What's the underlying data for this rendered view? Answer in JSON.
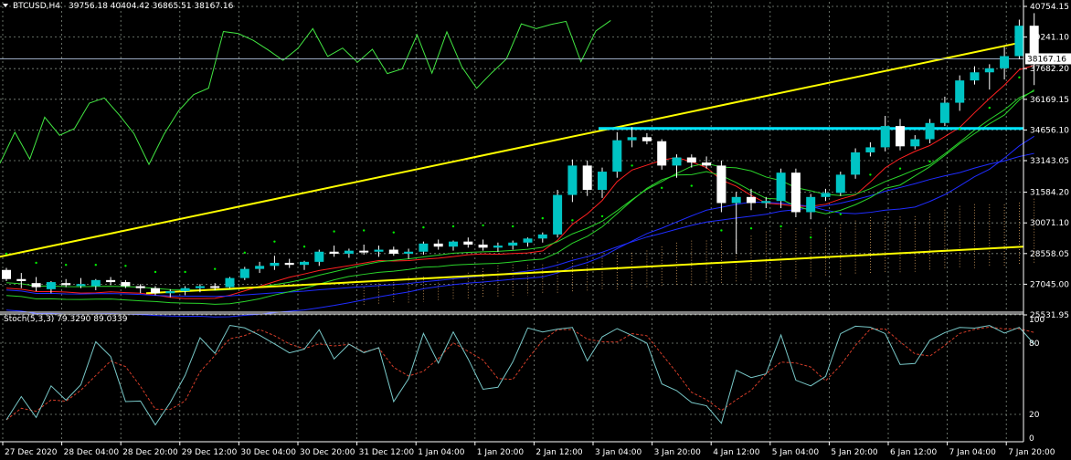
{
  "header": {
    "symbol": "BTCUSD,H4",
    "ohlc": "39756.18 40404.42 36865.51 38167.16"
  },
  "stoch": {
    "label": "Stoch(5,3,3) 79.3290 89.0339",
    "levels": [
      "100",
      "80",
      "20",
      "0"
    ]
  },
  "price_label": "38167.16",
  "colors": {
    "background": "#000000",
    "grid": "#7f8a7f",
    "bull": "#00c4c4",
    "bear": "#ffffff",
    "trend": "#ffff00",
    "resistance": "#00e5ff",
    "ma_fast": "#ff2020",
    "ma_mid": "#2ad42a",
    "ma_slow": "#1f2cff",
    "oscillator": "#42e642",
    "stoch_main": "#78c8c8",
    "stoch_signal": "#d23c28",
    "psar": "#00ee00",
    "cloud": "#d8a060"
  },
  "chart_data": {
    "type": "candlestick",
    "symbol": "BTCUSD",
    "timeframe": "H4",
    "y_ticks": [
      "40754.15",
      "39241.10",
      "37682.20",
      "36169.15",
      "34656.10",
      "33143.05",
      "31584.20",
      "30071.10",
      "28558.05",
      "27045.00",
      "25531.95"
    ],
    "x_ticks": [
      "27 Dec 2020",
      "28 Dec 04:00",
      "28 Dec 20:00",
      "29 Dec 12:00",
      "30 Dec 04:00",
      "30 Dec 20:00",
      "31 Dec 12:00",
      "1 Jan 04:00",
      "1 Jan 20:00",
      "2 Jan 12:00",
      "3 Jan 04:00",
      "3 Jan 20:00",
      "4 Jan 12:00",
      "5 Jan 04:00",
      "5 Jan 20:00",
      "6 Jan 12:00",
      "7 Jan 04:00",
      "7 Jan 20:00"
    ],
    "ylim": [
      25531.95,
      40754.15
    ],
    "current_price": 38167.16,
    "resistance_level": 34730,
    "candles": [
      {
        "o": 27750,
        "h": 27850,
        "l": 27200,
        "c": 27300
      },
      {
        "o": 27300,
        "h": 27600,
        "l": 26850,
        "c": 27200
      },
      {
        "o": 27100,
        "h": 27400,
        "l": 26700,
        "c": 26900
      },
      {
        "o": 26800,
        "h": 27200,
        "l": 26600,
        "c": 27150
      },
      {
        "o": 27100,
        "h": 27300,
        "l": 26900,
        "c": 27000
      },
      {
        "o": 27000,
        "h": 27350,
        "l": 26850,
        "c": 27050
      },
      {
        "o": 26950,
        "h": 27300,
        "l": 26750,
        "c": 27250
      },
      {
        "o": 27250,
        "h": 27400,
        "l": 27000,
        "c": 27150
      },
      {
        "o": 27150,
        "h": 27250,
        "l": 26850,
        "c": 26950
      },
      {
        "o": 26950,
        "h": 27050,
        "l": 26600,
        "c": 26850
      },
      {
        "o": 26850,
        "h": 26950,
        "l": 26500,
        "c": 26600
      },
      {
        "o": 26600,
        "h": 26800,
        "l": 26400,
        "c": 26700
      },
      {
        "o": 26700,
        "h": 26950,
        "l": 26500,
        "c": 26850
      },
      {
        "o": 26850,
        "h": 27050,
        "l": 26650,
        "c": 26950
      },
      {
        "o": 26950,
        "h": 27100,
        "l": 26750,
        "c": 26900
      },
      {
        "o": 26900,
        "h": 27400,
        "l": 26850,
        "c": 27350
      },
      {
        "o": 27350,
        "h": 27900,
        "l": 27250,
        "c": 27800
      },
      {
        "o": 27800,
        "h": 28150,
        "l": 27600,
        "c": 27950
      },
      {
        "o": 27950,
        "h": 28450,
        "l": 27750,
        "c": 28100
      },
      {
        "o": 28100,
        "h": 28300,
        "l": 27850,
        "c": 28000
      },
      {
        "o": 28000,
        "h": 28200,
        "l": 27750,
        "c": 28150
      },
      {
        "o": 28150,
        "h": 28750,
        "l": 27950,
        "c": 28650
      },
      {
        "o": 28650,
        "h": 28950,
        "l": 28400,
        "c": 28550
      },
      {
        "o": 28550,
        "h": 28800,
        "l": 28350,
        "c": 28700
      },
      {
        "o": 28700,
        "h": 29000,
        "l": 28500,
        "c": 28650
      },
      {
        "o": 28650,
        "h": 28950,
        "l": 28400,
        "c": 28750
      },
      {
        "o": 28750,
        "h": 28900,
        "l": 28450,
        "c": 28550
      },
      {
        "o": 28550,
        "h": 28800,
        "l": 28300,
        "c": 28650
      },
      {
        "o": 28650,
        "h": 29150,
        "l": 28500,
        "c": 29050
      },
      {
        "o": 29050,
        "h": 29250,
        "l": 28750,
        "c": 28900
      },
      {
        "o": 28900,
        "h": 29200,
        "l": 28700,
        "c": 29150
      },
      {
        "o": 29150,
        "h": 29350,
        "l": 28850,
        "c": 29000
      },
      {
        "o": 29000,
        "h": 29250,
        "l": 28700,
        "c": 28850
      },
      {
        "o": 28850,
        "h": 29100,
        "l": 28650,
        "c": 28950
      },
      {
        "o": 28950,
        "h": 29200,
        "l": 28750,
        "c": 29100
      },
      {
        "o": 29100,
        "h": 29350,
        "l": 28900,
        "c": 29300
      },
      {
        "o": 29300,
        "h": 29600,
        "l": 29100,
        "c": 29500
      },
      {
        "o": 29500,
        "h": 31700,
        "l": 29350,
        "c": 31450
      },
      {
        "o": 31450,
        "h": 33200,
        "l": 31100,
        "c": 32900
      },
      {
        "o": 32900,
        "h": 33150,
        "l": 31400,
        "c": 31700
      },
      {
        "o": 31700,
        "h": 32800,
        "l": 31300,
        "c": 32600
      },
      {
        "o": 32600,
        "h": 34550,
        "l": 32300,
        "c": 34150
      },
      {
        "o": 34150,
        "h": 34800,
        "l": 33800,
        "c": 34300
      },
      {
        "o": 34300,
        "h": 34500,
        "l": 33950,
        "c": 34100
      },
      {
        "o": 34100,
        "h": 34200,
        "l": 32700,
        "c": 32900
      },
      {
        "o": 32900,
        "h": 33450,
        "l": 32300,
        "c": 33300
      },
      {
        "o": 33300,
        "h": 33450,
        "l": 32800,
        "c": 33050
      },
      {
        "o": 33050,
        "h": 33350,
        "l": 32750,
        "c": 32900
      },
      {
        "o": 32900,
        "h": 33150,
        "l": 30600,
        "c": 31050
      },
      {
        "o": 31050,
        "h": 31600,
        "l": 28550,
        "c": 31350
      },
      {
        "o": 31350,
        "h": 31750,
        "l": 30700,
        "c": 31050
      },
      {
        "o": 31050,
        "h": 31350,
        "l": 30800,
        "c": 31150
      },
      {
        "o": 31150,
        "h": 32750,
        "l": 30800,
        "c": 32550
      },
      {
        "o": 32550,
        "h": 32750,
        "l": 30350,
        "c": 30600
      },
      {
        "o": 30600,
        "h": 31500,
        "l": 30250,
        "c": 31350
      },
      {
        "o": 31350,
        "h": 31750,
        "l": 31150,
        "c": 31550
      },
      {
        "o": 31550,
        "h": 32600,
        "l": 31400,
        "c": 32450
      },
      {
        "o": 32450,
        "h": 33750,
        "l": 32250,
        "c": 33550
      },
      {
        "o": 33550,
        "h": 34050,
        "l": 33350,
        "c": 33800
      },
      {
        "o": 33800,
        "h": 35350,
        "l": 33600,
        "c": 34850
      },
      {
        "o": 34850,
        "h": 35200,
        "l": 33650,
        "c": 33850
      },
      {
        "o": 33850,
        "h": 34400,
        "l": 33700,
        "c": 34200
      },
      {
        "o": 34200,
        "h": 35200,
        "l": 34000,
        "c": 35000
      },
      {
        "o": 35000,
        "h": 36300,
        "l": 34850,
        "c": 36000
      },
      {
        "o": 36000,
        "h": 37350,
        "l": 35600,
        "c": 37100
      },
      {
        "o": 37100,
        "h": 37800,
        "l": 36900,
        "c": 37500
      },
      {
        "o": 37500,
        "h": 37900,
        "l": 36650,
        "c": 37700
      },
      {
        "o": 37700,
        "h": 38750,
        "l": 37150,
        "c": 38300
      },
      {
        "o": 38300,
        "h": 40100,
        "l": 38150,
        "c": 39800
      },
      {
        "o": 39800,
        "h": 40420,
        "l": 36870,
        "c": 38170
      }
    ],
    "stochastic": {
      "main": 79.329,
      "signal": 89.0339,
      "range": [
        0,
        100
      ],
      "levels": [
        20,
        80
      ]
    }
  }
}
